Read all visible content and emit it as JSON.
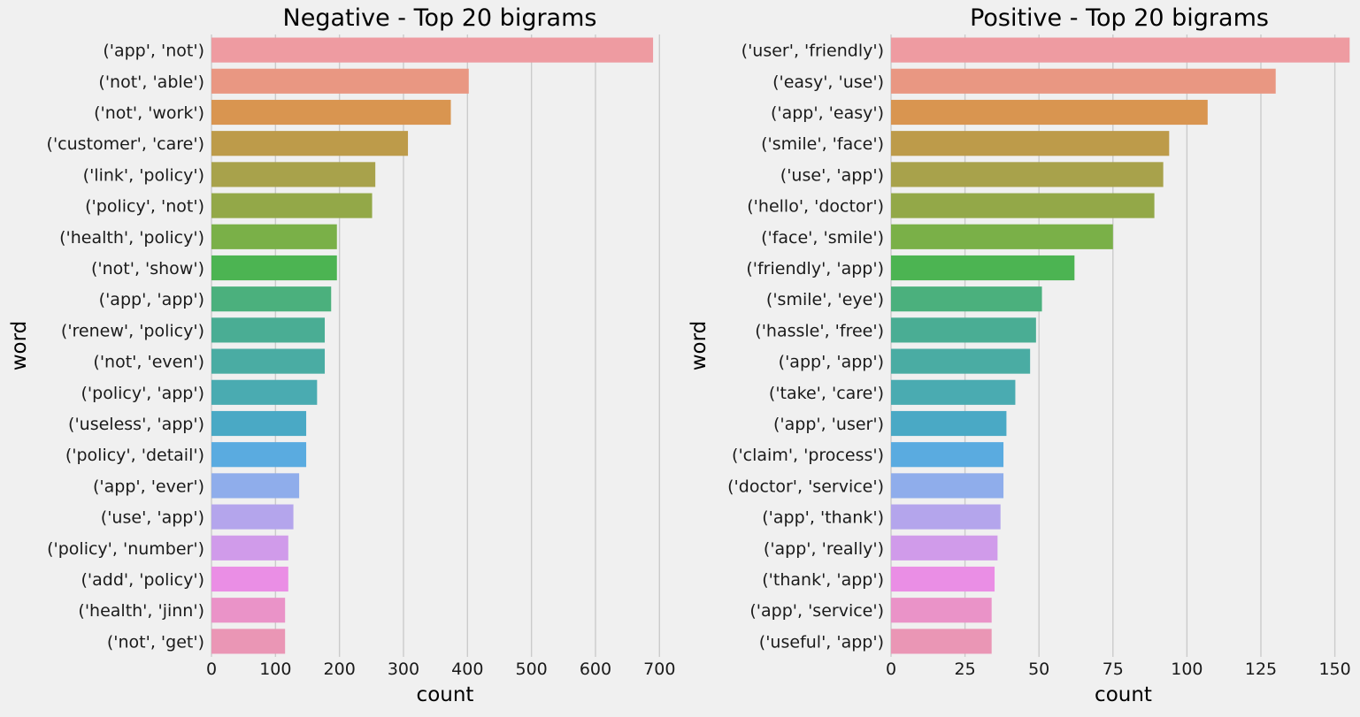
{
  "chart_data": [
    {
      "type": "bar",
      "orientation": "horizontal",
      "title": "Negative - Top 20 bigrams",
      "xlabel": "count",
      "ylabel": "word",
      "xlim": [
        0,
        730
      ],
      "xticks": [
        0,
        100,
        200,
        300,
        400,
        500,
        600,
        700
      ],
      "grid": "vertical",
      "categories": [
        "('app', 'not')",
        "('not', 'able')",
        "('not', 'work')",
        "('customer', 'care')",
        "('link', 'policy')",
        "('policy', 'not')",
        "('health', 'policy')",
        "('not', 'show')",
        "('app', 'app')",
        "('renew', 'policy')",
        "('not', 'even')",
        "('policy', 'app')",
        "('useless', 'app')",
        "('policy', 'detail')",
        "('app', 'ever')",
        "('use', 'app')",
        "('policy', 'number')",
        "('add', 'policy')",
        "('health', 'jinn')",
        "('not', 'get')"
      ],
      "values": [
        690,
        402,
        374,
        307,
        256,
        251,
        196,
        196,
        187,
        177,
        177,
        165,
        148,
        148,
        137,
        128,
        120,
        120,
        115,
        115
      ]
    },
    {
      "type": "bar",
      "orientation": "horizontal",
      "title": "Positive - Top 20 bigrams",
      "xlabel": "count",
      "ylabel": "word",
      "xlim": [
        0,
        157
      ],
      "xticks": [
        0,
        25,
        50,
        75,
        100,
        125,
        150
      ],
      "grid": "vertical",
      "categories": [
        "('user', 'friendly')",
        "('easy', 'use')",
        "('app', 'easy')",
        "('smile', 'face')",
        "('use', 'app')",
        "('hello', 'doctor')",
        "('face', 'smile')",
        "('friendly', 'app')",
        "('smile', 'eye')",
        "('hassle', 'free')",
        "('app', 'app')",
        "('take', 'care')",
        "('app', 'user')",
        "('claim', 'process')",
        "('doctor', 'service')",
        "('app', 'thank')",
        "('app', 'really')",
        "('thank', 'app')",
        "('app', 'service')",
        "('useful', 'app')"
      ],
      "values": [
        155,
        130,
        107,
        94,
        92,
        89,
        75,
        62,
        51,
        49,
        47,
        42,
        39,
        38,
        38,
        37,
        36,
        35,
        34,
        34
      ]
    }
  ],
  "bar_colors": [
    "#ee9ba1",
    "#e99782",
    "#d99550",
    "#bd9b4a",
    "#a8a24b",
    "#93a848",
    "#7ab048",
    "#4cb452",
    "#4bb07d",
    "#4aad94",
    "#4aaca3",
    "#4aabb1",
    "#4aa9c5",
    "#5aabe0",
    "#8fadeb",
    "#b4a5ec",
    "#d09bea",
    "#ea8ee5",
    "#ea93c8",
    "#ea96b5"
  ]
}
